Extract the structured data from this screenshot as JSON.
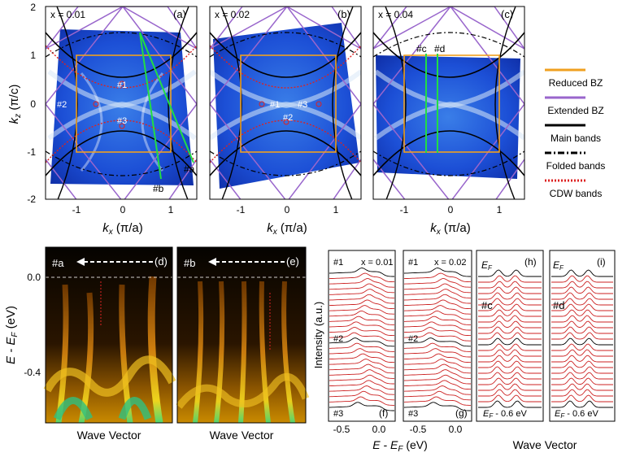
{
  "panels": {
    "a": {
      "label": "(a)",
      "doping": "x = 0.01",
      "markers": [
        "#1",
        "#2",
        "#3"
      ],
      "cuts": [
        "#a",
        "#b"
      ]
    },
    "b": {
      "label": "(b)",
      "doping": "x = 0.02",
      "markers": [
        "#1",
        "#2",
        "#3"
      ]
    },
    "c": {
      "label": "(c)",
      "doping": "x = 0.04",
      "cuts": [
        "#c",
        "#d"
      ]
    },
    "d": {
      "label": "(d)",
      "cut": "#a",
      "xlabel": "Wave Vector"
    },
    "e": {
      "label": "(e)",
      "cut": "#b",
      "xlabel": "Wave Vector"
    },
    "f": {
      "label": "(f)",
      "doping": "x = 0.01",
      "markers": [
        "#1",
        "#2",
        "#3"
      ]
    },
    "g": {
      "label": "(g)",
      "doping": "x = 0.02",
      "markers": [
        "#1",
        "#2",
        "#3"
      ]
    },
    "h": {
      "label": "(h)",
      "cut": "#c",
      "top": "E",
      "top_sub": "F",
      "bottom": "E",
      "bottom_sub": "F",
      "bottom_suffix": " - 0.6 eV"
    },
    "i": {
      "label": "(i)",
      "cut": "#d",
      "top": "E",
      "top_sub": "F",
      "bottom": "E",
      "bottom_sub": "F",
      "bottom_suffix": " - 0.6 eV"
    }
  },
  "axes": {
    "kz_label": "k",
    "kz_sub": "z",
    "kz_unit": " (π/c)",
    "kx_label": "k",
    "kx_sub": "x",
    "kx_unit": " (π/a)",
    "kz_ticks": [
      "2",
      "1",
      "0",
      "-1",
      "-2"
    ],
    "kx_ticks": [
      "-1",
      "0",
      "1"
    ],
    "energy_label": "E - E",
    "energy_sub": "F",
    "energy_unit": " (eV)",
    "energy_ticks": [
      "0.0",
      "-0.4"
    ],
    "edc_ticks": [
      "-0.5",
      "0.0"
    ],
    "intensity_label": "Intensity (a.u.)",
    "wave_vector": "Wave Vector"
  },
  "legend": [
    {
      "label": "Reduced BZ",
      "color": "#f0a020",
      "style": "solid"
    },
    {
      "label": "Extended BZ",
      "color": "#9966cc",
      "style": "solid"
    },
    {
      "label": "Main bands",
      "color": "#000000",
      "style": "solid"
    },
    {
      "label": "Folded bands",
      "color": "#000000",
      "style": "dashdot"
    },
    {
      "label": "CDW bands",
      "color": "#dd2222",
      "style": "dotted"
    }
  ]
}
